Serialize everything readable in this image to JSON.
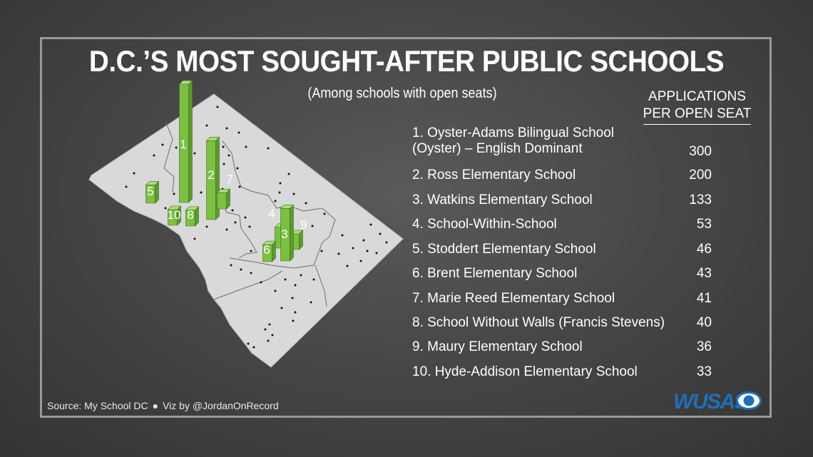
{
  "header": {
    "title": "D.C.’S MOST SOUGHT-AFTER PUBLIC SCHOOLS",
    "subtitle": "(Among schools with open seats)"
  },
  "column_header": {
    "line1": "APPLICATIONS",
    "line2": "PER OPEN SEAT"
  },
  "schools": [
    {
      "rank": 1,
      "name": "1. Oyster-Adams Bilingual School",
      "name2": "(Oyster) – English Dominant",
      "value": "300"
    },
    {
      "rank": 2,
      "name": "2. Ross Elementary School",
      "value": "200"
    },
    {
      "rank": 3,
      "name": "3. Watkins Elementary School",
      "value": "133"
    },
    {
      "rank": 4,
      "name": "4. School-Within-School",
      "value": "53"
    },
    {
      "rank": 5,
      "name": "5. Stoddert Elementary School",
      "value": "46"
    },
    {
      "rank": 6,
      "name": "6. Brent Elementary School",
      "value": "43"
    },
    {
      "rank": 7,
      "name": "7. Marie Reed Elementary School",
      "value": "41"
    },
    {
      "rank": 8,
      "name": "8. School Without Walls (Francis Stevens)",
      "value": "40"
    },
    {
      "rank": 9,
      "name": "9. Maury Elementary School",
      "value": "36"
    },
    {
      "rank": 10,
      "name": "10. Hyde-Addison Elementary School",
      "value": "33"
    }
  ],
  "map_bars": [
    {
      "label": "1",
      "value": 300
    },
    {
      "label": "2",
      "value": 200
    },
    {
      "label": "3",
      "value": 133
    },
    {
      "label": "4",
      "value": 53
    },
    {
      "label": "5",
      "value": 46
    },
    {
      "label": "6",
      "value": 43
    },
    {
      "label": "7",
      "value": 41
    },
    {
      "label": "8",
      "value": 40
    },
    {
      "label": "9",
      "value": 36
    },
    {
      "label": "10",
      "value": 33
    }
  ],
  "footer": {
    "source": "Source: My School DC",
    "bullet": "●",
    "credit": "Viz by @JordanOnRecord"
  },
  "logo": {
    "text": "WUSA9",
    "icon": "cbs-eye-icon"
  },
  "colors": {
    "bar_front": "#7cc043",
    "bar_side": "#5e9a2e",
    "bar_top": "#a9dd7a",
    "map_fill": "#d9d9d9",
    "logo_blue": "#1f6fb8"
  }
}
